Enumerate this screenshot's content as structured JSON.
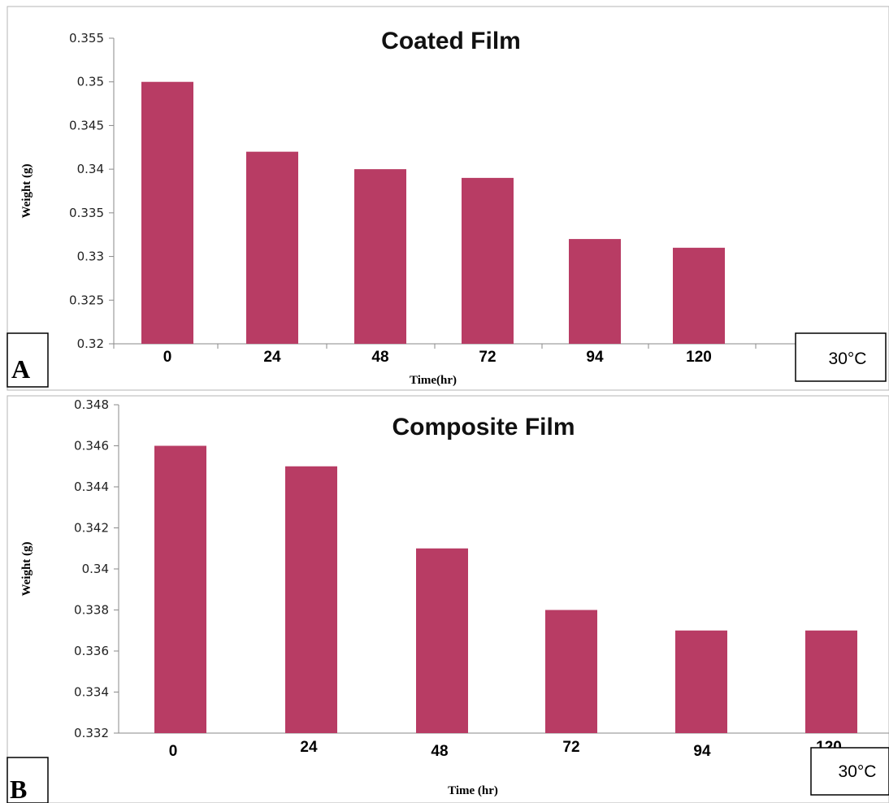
{
  "chart_data": [
    {
      "panel": "A",
      "type": "bar",
      "title": "Coated Film",
      "xlabel": "Time(hr)",
      "ylabel": "Weight (g)",
      "categories": [
        "0",
        "24",
        "48",
        "72",
        "94",
        "120"
      ],
      "values": [
        0.35,
        0.342,
        0.34,
        0.339,
        0.332,
        0.331
      ],
      "ylim": [
        0.32,
        0.355
      ],
      "yticks": [
        "0.32",
        "0.325",
        "0.33",
        "0.335",
        "0.34",
        "0.345",
        "0.35",
        "0.355"
      ],
      "bar_color": "#b83c64",
      "grid": false,
      "annotation": "30°C"
    },
    {
      "panel": "B",
      "type": "bar",
      "title": "Composite Film",
      "xlabel": "Time (hr)",
      "ylabel": "Weight (g)",
      "categories": [
        "0",
        "24",
        "48",
        "72",
        "94",
        "120"
      ],
      "values": [
        0.346,
        0.345,
        0.341,
        0.338,
        0.337,
        0.337
      ],
      "ylim": [
        0.332,
        0.348
      ],
      "yticks": [
        "0.332",
        "0.334",
        "0.336",
        "0.338",
        "0.34",
        "0.342",
        "0.344",
        "0.346",
        "0.348"
      ],
      "bar_color": "#b83c64",
      "grid": false,
      "annotation": "30°C"
    }
  ]
}
